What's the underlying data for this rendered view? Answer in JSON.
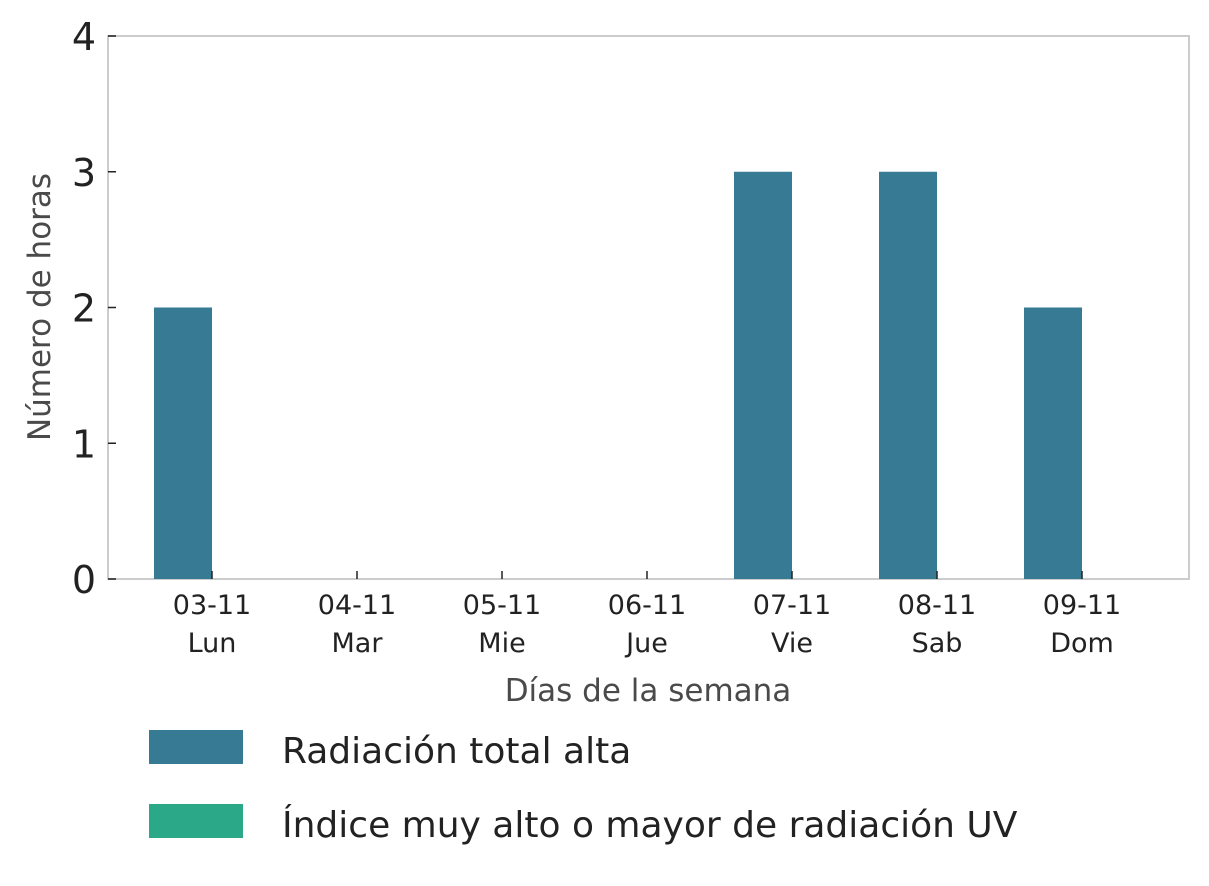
{
  "chart_data": {
    "type": "bar",
    "title": "",
    "xlabel": "Días de la semana",
    "ylabel": "Número de horas",
    "ylim": [
      0,
      4
    ],
    "yticks": [
      0,
      1,
      2,
      3,
      4
    ],
    "grid": false,
    "legend_position": "bottom-left",
    "categories": [
      {
        "date": "03-11",
        "day": "Lun"
      },
      {
        "date": "04-11",
        "day": "Mar"
      },
      {
        "date": "05-11",
        "day": "Mie"
      },
      {
        "date": "06-11",
        "day": "Jue"
      },
      {
        "date": "07-11",
        "day": "Vie"
      },
      {
        "date": "08-11",
        "day": "Sab"
      },
      {
        "date": "09-11",
        "day": "Dom"
      }
    ],
    "series": [
      {
        "name": "Radiación total alta",
        "color": "#367a94",
        "values": [
          2,
          0,
          0,
          0,
          3,
          3,
          2
        ]
      },
      {
        "name": "Índice muy alto o mayor de radiación UV",
        "color": "#2aa888",
        "values": [
          0,
          0,
          0,
          0,
          0,
          0,
          0
        ]
      }
    ]
  }
}
